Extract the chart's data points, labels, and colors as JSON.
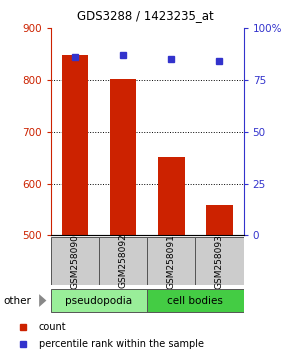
{
  "title": "GDS3288 / 1423235_at",
  "samples": [
    "GSM258090",
    "GSM258092",
    "GSM258091",
    "GSM258093"
  ],
  "bar_values": [
    848,
    803,
    651,
    558
  ],
  "percentile_values": [
    86,
    87,
    85,
    84
  ],
  "bar_color": "#cc2200",
  "percentile_color": "#3333cc",
  "ylim_left": [
    500,
    900
  ],
  "ylim_right": [
    0,
    100
  ],
  "yticks_left": [
    500,
    600,
    700,
    800,
    900
  ],
  "yticks_right": [
    0,
    25,
    50,
    75,
    100
  ],
  "ytick_labels_right": [
    "0",
    "25",
    "50",
    "75",
    "100%"
  ],
  "groups": [
    {
      "label": "pseudopodia",
      "color": "#99ee99",
      "span": [
        0,
        2
      ]
    },
    {
      "label": "cell bodies",
      "color": "#44cc44",
      "span": [
        2,
        4
      ]
    }
  ],
  "other_label": "other",
  "tick_color_left": "#cc2200",
  "tick_color_right": "#3333cc",
  "bar_bottom": 500,
  "legend_count_label": "count",
  "legend_pct_label": "percentile rank within the sample",
  "gridline_color": "#000000",
  "gridlines": [
    600,
    700,
    800
  ]
}
